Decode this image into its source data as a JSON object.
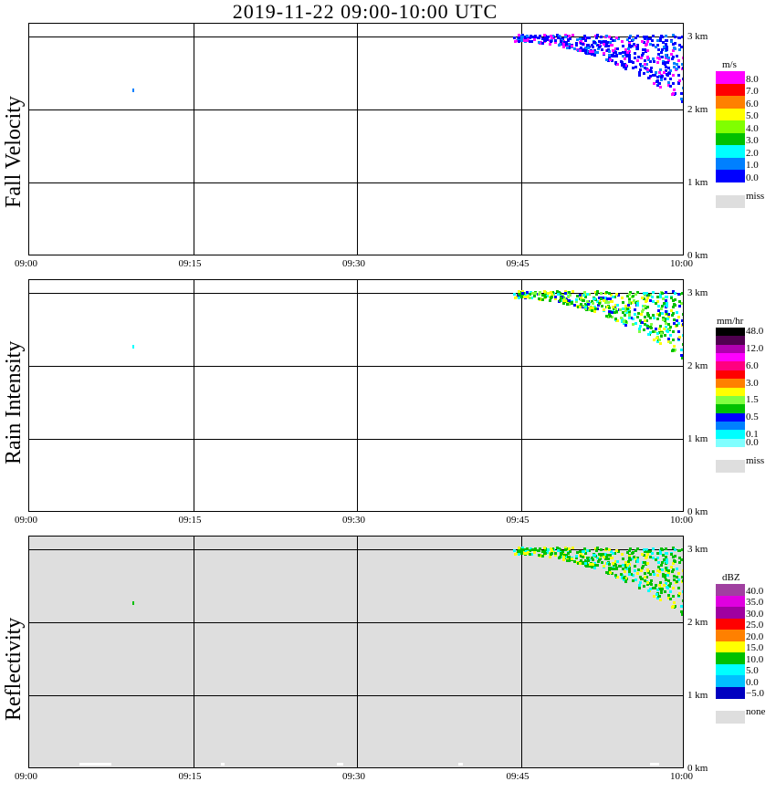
{
  "chart_data": {
    "type": "heatmap",
    "title": "2019-11-22   09:00-10:00 UTC",
    "x_ticks": [
      "09:00",
      "09:15",
      "09:30",
      "09:45",
      "10:00"
    ],
    "y_ticks": [
      "0 km",
      "1 km",
      "2 km",
      "3 km"
    ],
    "ylim_km": [
      0,
      3.19
    ],
    "xlim_min": [
      0,
      60
    ],
    "panels": [
      {
        "ylabel": "Fall Velocity",
        "unit": "m/s",
        "colors": [
          "#ff00ff",
          "#ff0000",
          "#ff8000",
          "#ffff00",
          "#80ff00",
          "#00c000",
          "#00ffff",
          "#0080ff",
          "#0000ff"
        ],
        "labels": [
          "8.0",
          "7.0",
          "6.0",
          "5.0",
          "4.0",
          "3.0",
          "2.0",
          "1.0",
          "0.0"
        ],
        "label_at": [
          1,
          2,
          3,
          4,
          5,
          6,
          7,
          8,
          9
        ],
        "miss_label": "miss",
        "bg": "#ffffff",
        "echo_colors": [
          "#0000ff",
          "#0000ff",
          "#0080ff",
          "#ff00ff",
          "#0000ff"
        ]
      },
      {
        "ylabel": "Rain Intensity",
        "unit": "mm/hr",
        "colors": [
          "#000000",
          "#500050",
          "#b000b0",
          "#ff00ff",
          "#ff0080",
          "#ff0000",
          "#ff8000",
          "#ffff00",
          "#80ff40",
          "#00c000",
          "#0000ff",
          "#0080ff",
          "#00ffff",
          "#80ffff"
        ],
        "labels": [
          "48.0",
          "12.0",
          "6.0",
          "3.0",
          "1.5",
          "0.5",
          "0.1",
          "0.0"
        ],
        "label_at": [
          1,
          3,
          5,
          7,
          9,
          11,
          13,
          14
        ],
        "miss_label": "miss",
        "bg": "#ffffff",
        "echo_colors": [
          "#00c000",
          "#80ff40",
          "#0000ff",
          "#00c000",
          "#ffff00",
          "#00ffff"
        ]
      },
      {
        "ylabel": "Reflectivity",
        "unit": "dBZ",
        "colors": [
          "#a040a0",
          "#e000e0",
          "#a000a0",
          "#ff0000",
          "#ff8000",
          "#ffff00",
          "#00c000",
          "#00ffff",
          "#00c0ff",
          "#0000c0"
        ],
        "labels": [
          "40.0",
          "35.0",
          "30.0",
          "25.0",
          "20.0",
          "15.0",
          "10.0",
          "5.0",
          "0.0",
          "−5.0"
        ],
        "label_at": [
          1,
          2,
          3,
          4,
          5,
          6,
          7,
          8,
          9,
          10
        ],
        "miss_label": "none",
        "bg": "#dedede",
        "echo_colors": [
          "#00c000",
          "#00c000",
          "#00c000",
          "#ffff00",
          "#00ffff"
        ]
      }
    ]
  }
}
